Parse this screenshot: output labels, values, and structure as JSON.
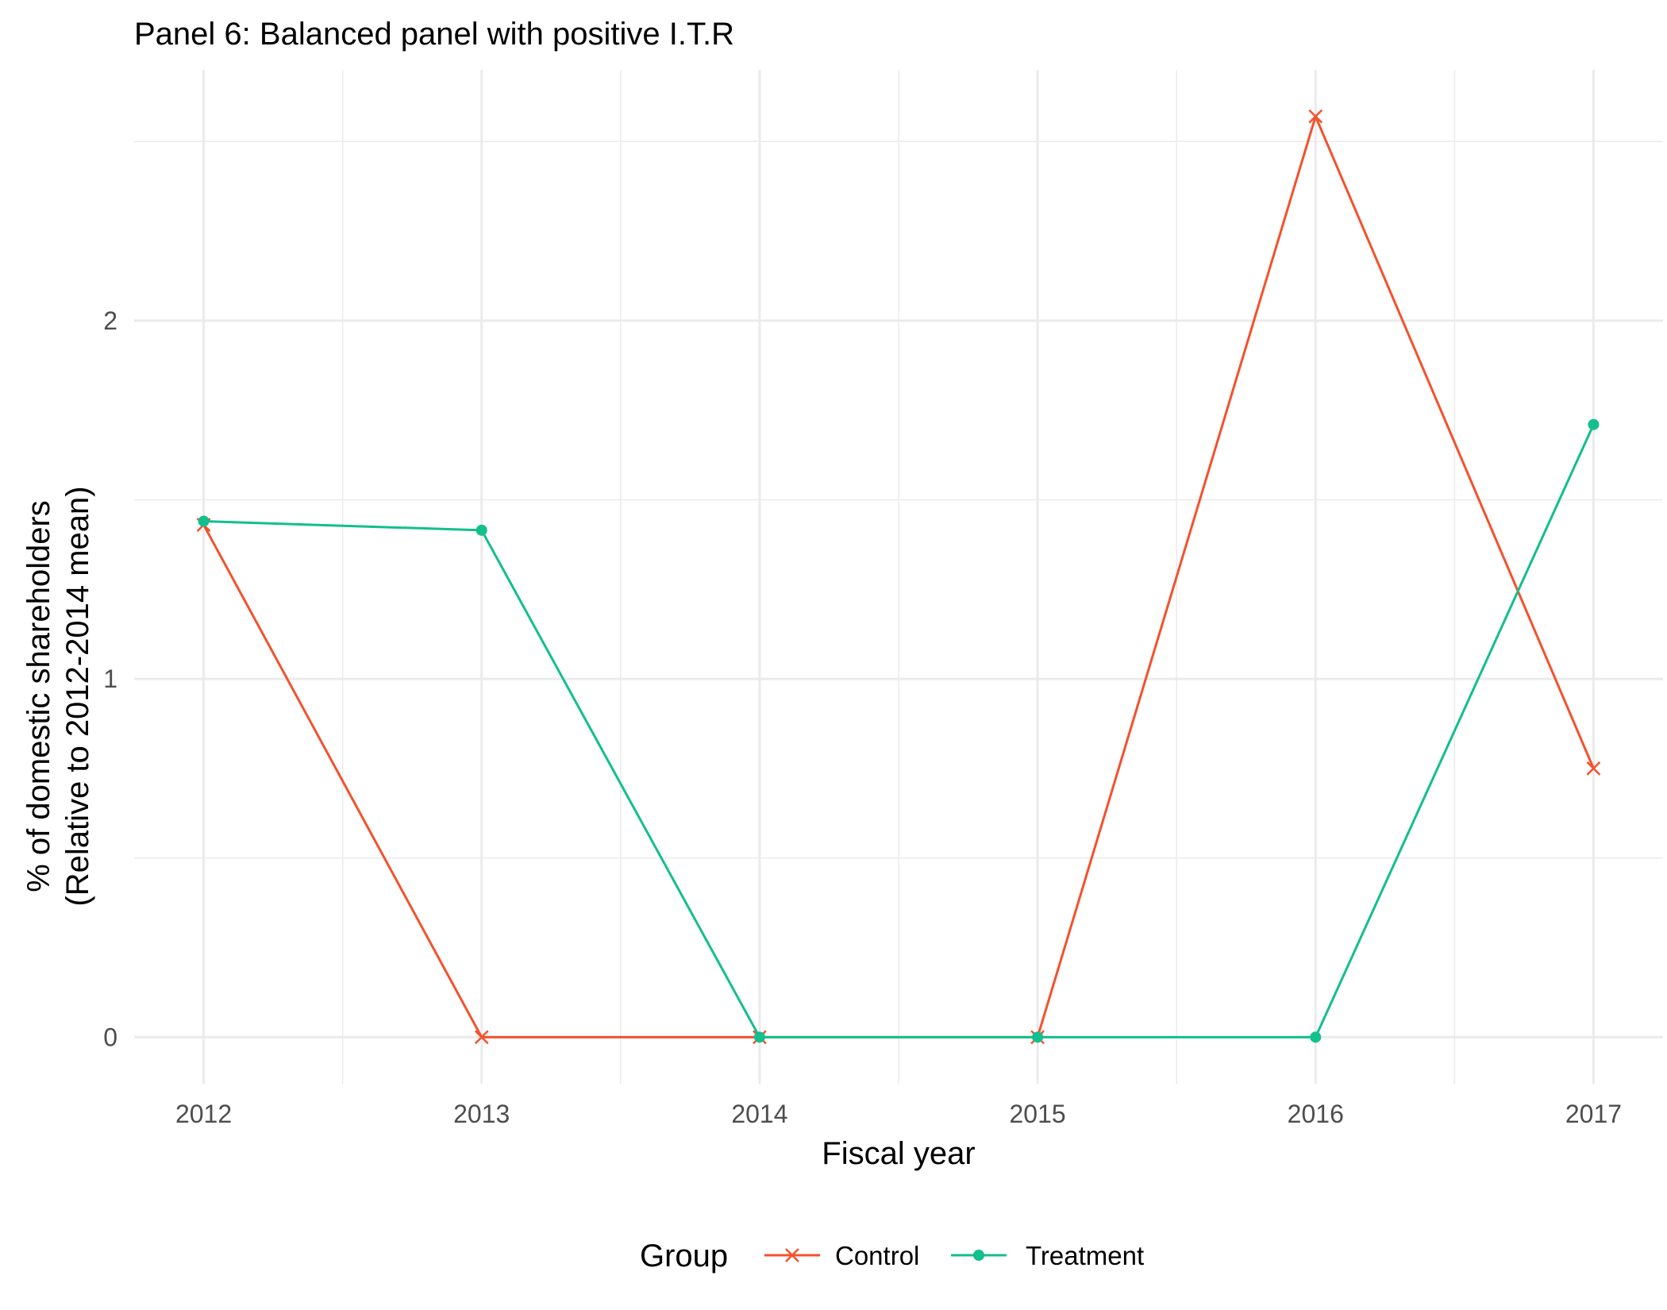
{
  "chart_data": {
    "type": "line",
    "title": "Panel 6: Balanced panel with positive I.T.R",
    "xlabel": "Fiscal year",
    "ylabel_line1": "% of domestic shareholders",
    "ylabel_line2": "(Relative to 2012-2014 mean)",
    "x": [
      2012,
      2013,
      2014,
      2015,
      2016,
      2017
    ],
    "x_tick_labels": [
      "2012",
      "2013",
      "2014",
      "2015",
      "2016",
      "2017"
    ],
    "y_ticks": [
      0,
      1,
      2
    ],
    "y_tick_labels": [
      "0",
      "1",
      "2"
    ],
    "xlim": [
      2011.75,
      2017.25
    ],
    "ylim": [
      -0.13,
      2.7
    ],
    "grid": true,
    "legend_position": "bottom",
    "legend_title": "Group",
    "series": [
      {
        "name": "Control",
        "color": "#f4512c",
        "marker": "x",
        "values": [
          1.43,
          0.0,
          0.0,
          0.0,
          2.57,
          0.75
        ]
      },
      {
        "name": "Treatment",
        "color": "#12bf8d",
        "marker": "circle",
        "values": [
          1.44,
          1.415,
          0.0,
          0.0,
          0.0,
          1.71
        ]
      }
    ]
  }
}
